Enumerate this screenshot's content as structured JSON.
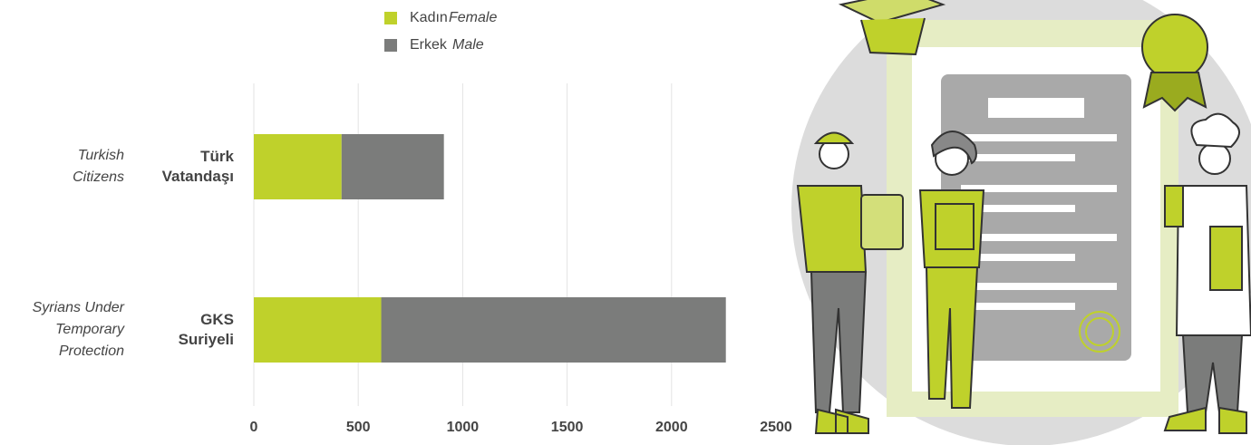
{
  "chart_data": {
    "type": "stacked-barh",
    "categories": [
      "Türk Vatandaşı",
      "GKS Suriyeli"
    ],
    "category_labels_en": [
      [
        "Turkish",
        "Citizens"
      ],
      [
        "Syrians Under",
        "Temporary",
        "Protection"
      ]
    ],
    "series": [
      {
        "name": "Kadın",
        "name_en": "Female",
        "color": "#bfd12b",
        "values": [
          420,
          610
        ]
      },
      {
        "name": "Erkek",
        "name_en": "Male",
        "color": "#7b7c7b",
        "values": [
          490,
          1650
        ]
      }
    ],
    "xlim": [
      0,
      2500
    ],
    "xticks": [
      0,
      500,
      1000,
      1500,
      2000,
      2500
    ],
    "grid": true
  }
}
